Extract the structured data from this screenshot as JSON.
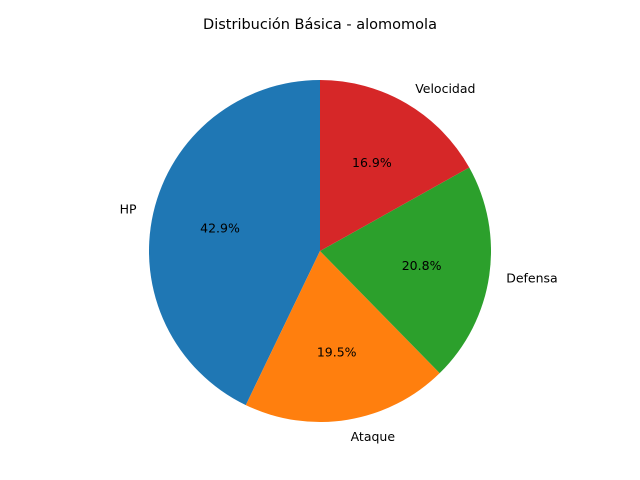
{
  "chart_data": {
    "type": "pie",
    "title": "Distribución Básica - alomomola",
    "start_angle_deg": 90,
    "direction": "counterclockwise",
    "legend": "none",
    "slices": [
      {
        "label": "HP",
        "percent": 42.9,
        "percent_label": "42.9%",
        "color": "#1f77b4"
      },
      {
        "label": "Ataque",
        "percent": 19.5,
        "percent_label": "19.5%",
        "color": "#ff7f0e"
      },
      {
        "label": "Defensa",
        "percent": 20.8,
        "percent_label": "20.8%",
        "color": "#2ca02c"
      },
      {
        "label": "Velocidad",
        "percent": 16.9,
        "percent_label": "16.9%",
        "color": "#d62728"
      }
    ]
  }
}
